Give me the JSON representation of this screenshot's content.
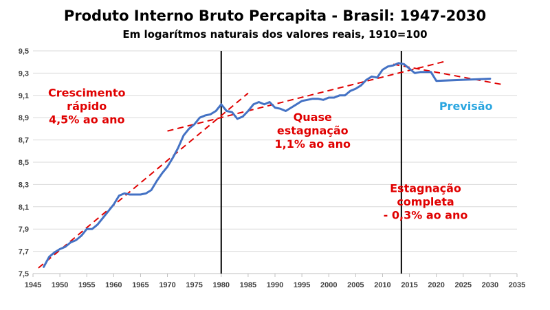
{
  "chart_data": {
    "type": "line",
    "title": "Produto Interno Bruto Percapita - Brasil: 1947-2030",
    "subtitle": "Em logarítmos naturais dos valores reais, 1910=100",
    "xlabel": "",
    "ylabel": "",
    "xlim": [
      1945,
      2035
    ],
    "ylim": [
      7.5,
      9.5
    ],
    "x_ticks": [
      "1945",
      "1950",
      "1955",
      "1960",
      "1965",
      "1970",
      "1975",
      "1980",
      "1985",
      "1990",
      "1995",
      "2000",
      "2005",
      "2010",
      "2015",
      "2020",
      "2025",
      "2030",
      "2035"
    ],
    "y_ticks": [
      "7,5",
      "7,7",
      "7,9",
      "8,1",
      "8,3",
      "8,5",
      "8,7",
      "8,9",
      "9,1",
      "9,3",
      "9,5"
    ],
    "grid": "horizontal",
    "legend": "none",
    "series": [
      {
        "color": "#4472c4",
        "x": [
          1947,
          1948,
          1949,
          1950,
          1951,
          1952,
          1953,
          1954,
          1955,
          1956,
          1957,
          1958,
          1959,
          1960,
          1961,
          1962,
          1963,
          1964,
          1965,
          1966,
          1967,
          1968,
          1969,
          1970,
          1971,
          1972,
          1973,
          1974,
          1975,
          1976,
          1977,
          1978,
          1979,
          1980,
          1981,
          1982,
          1983,
          1984,
          1985,
          1986,
          1987,
          1988,
          1989,
          1990,
          1991,
          1992,
          1993,
          1994,
          1995,
          1996,
          1997,
          1998,
          1999,
          2000,
          2001,
          2002,
          2003,
          2004,
          2005,
          2006,
          2007,
          2008,
          2009,
          2010,
          2011,
          2012,
          2013,
          2014,
          2015,
          2016,
          2017,
          2018,
          2019,
          2020,
          2025,
          2030
        ],
        "y": [
          7.56,
          7.65,
          7.69,
          7.72,
          7.74,
          7.78,
          7.8,
          7.84,
          7.9,
          7.9,
          7.94,
          8.0,
          8.06,
          8.12,
          8.2,
          8.22,
          8.21,
          8.21,
          8.21,
          8.22,
          8.25,
          8.33,
          8.4,
          8.46,
          8.54,
          8.63,
          8.74,
          8.8,
          8.84,
          8.9,
          8.92,
          8.93,
          8.96,
          9.02,
          8.96,
          8.95,
          8.89,
          8.91,
          8.96,
          9.02,
          9.04,
          9.02,
          9.04,
          8.99,
          8.98,
          8.96,
          8.99,
          9.02,
          9.05,
          9.06,
          9.07,
          9.07,
          9.06,
          9.08,
          9.08,
          9.1,
          9.1,
          9.14,
          9.16,
          9.19,
          9.24,
          9.27,
          9.26,
          9.33,
          9.36,
          9.37,
          9.39,
          9.38,
          9.34,
          9.3,
          9.31,
          9.31,
          9.31,
          9.23,
          9.24,
          9.25
        ]
      }
    ],
    "trend_lines": [
      {
        "x": [
          1946,
          1985
        ],
        "y": [
          7.55,
          9.12
        ],
        "color": "#e00000",
        "style": "dashed"
      },
      {
        "x": [
          1970,
          2022
        ],
        "y": [
          8.78,
          9.41
        ],
        "color": "#e00000",
        "style": "dashed"
      },
      {
        "x": [
          2012,
          2032
        ],
        "y": [
          9.38,
          9.2
        ],
        "color": "#e00000",
        "style": "dashed"
      }
    ],
    "vertical_lines": [
      1980,
      2013.5
    ],
    "annotations": [
      {
        "lines": [
          "Crescimento",
          "rápido",
          "4,5% ao ano"
        ],
        "color": "#e00000",
        "x": 1955,
        "y": [
          9.09,
          8.97,
          8.85
        ]
      },
      {
        "lines": [
          "Quase",
          "estagnação",
          "1,1% ao ano"
        ],
        "color": "#e00000",
        "x": 1997,
        "y": [
          8.87,
          8.75,
          8.63
        ]
      },
      {
        "lines": [
          "Estagnação",
          "completa",
          "- 0,3% ao ano"
        ],
        "color": "#e00000",
        "x": 2018,
        "y": [
          8.23,
          8.11,
          7.99
        ]
      },
      {
        "lines": [
          "Previsão"
        ],
        "color": "#2aa6e0",
        "x": 2025.5,
        "y": [
          8.97
        ]
      }
    ]
  }
}
